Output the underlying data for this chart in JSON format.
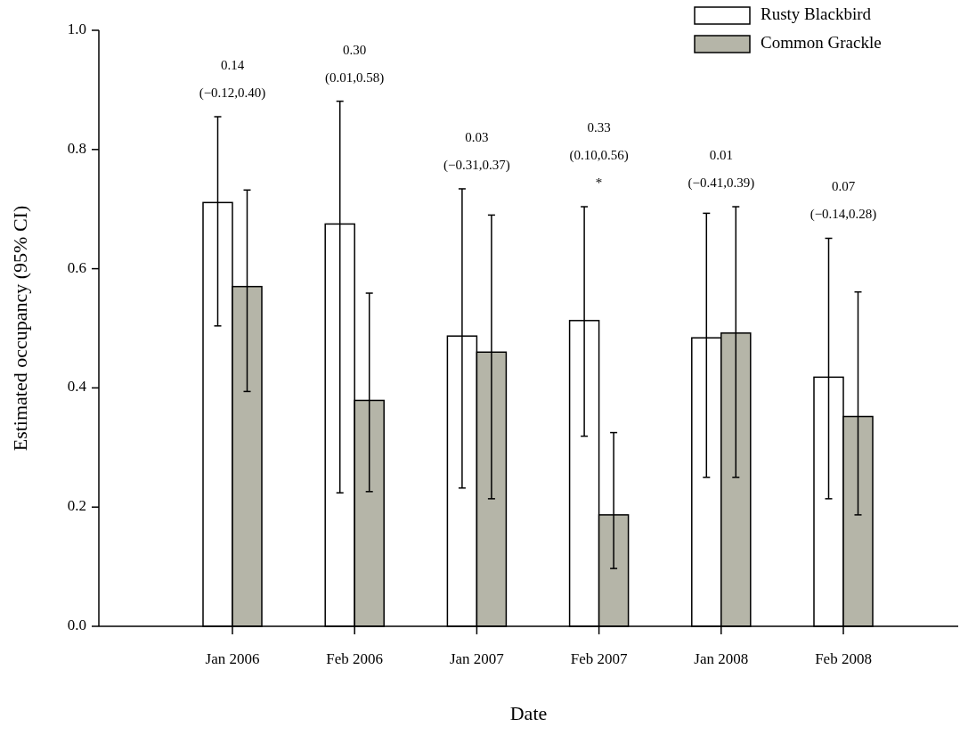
{
  "chart_data": {
    "type": "bar",
    "xlabel": "Date",
    "ylabel": "Estimated occupancy (95% CI)",
    "categories": [
      "Jan 2006",
      "Feb 2006",
      "Jan 2007",
      "Feb 2007",
      "Jan 2008",
      "Feb 2008"
    ],
    "series": [
      {
        "name": "Rusty Blackbird",
        "color": "#ffffff",
        "values": [
          0.711,
          0.675,
          0.487,
          0.513,
          0.484,
          0.418
        ],
        "errors": [
          [
            0.504,
            0.855
          ],
          [
            0.224,
            0.881
          ],
          [
            0.232,
            0.734
          ],
          [
            0.319,
            0.704
          ],
          [
            0.25,
            0.693
          ],
          [
            0.214,
            0.651
          ]
        ]
      },
      {
        "name": "Common Grackle",
        "color": "#b5b5a8",
        "values": [
          0.57,
          0.379,
          0.46,
          0.187,
          0.492,
          0.352
        ],
        "errors": [
          [
            0.394,
            0.732
          ],
          [
            0.226,
            0.559
          ],
          [
            0.214,
            0.69
          ],
          [
            0.097,
            0.325
          ],
          [
            0.25,
            0.704
          ],
          [
            0.187,
            0.561
          ]
        ]
      }
    ],
    "ylim": [
      0,
      1
    ],
    "yticks": [
      {
        "value": 0,
        "label": "0.0"
      },
      {
        "value": 0.2,
        "label": "0.2"
      },
      {
        "value": 0.4,
        "label": "0.4"
      },
      {
        "value": 0.6,
        "label": "0.6"
      },
      {
        "value": 0.8,
        "label": "0.8"
      },
      {
        "value": 1,
        "label": "1.0"
      }
    ],
    "grid": false,
    "legend": "top right",
    "annotations": [
      "0.14\n(−0.12,0.40)",
      "0.30\n(0.01,0.58)",
      "0.03\n(−0.31,0.37)",
      "0.33\n(0.10,0.56)\n*",
      "0.01\n(−0.41,0.39)",
      "0.07\n(−0.14,0.28)"
    ]
  }
}
